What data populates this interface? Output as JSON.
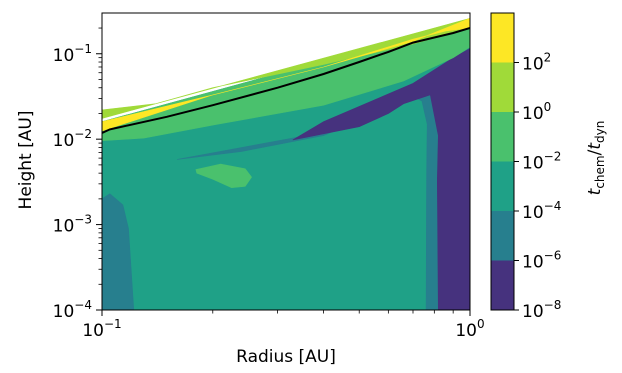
{
  "chart_data": {
    "type": "contourf",
    "xlabel": "Radius [AU]",
    "ylabel": "Height [AU]",
    "xscale": "log",
    "yscale": "log",
    "xlim": [
      0.1,
      1.0
    ],
    "ylim": [
      0.0001,
      0.3
    ],
    "x_ticks": [
      {
        "base": "10",
        "exp": "−1",
        "value": 0.1
      },
      {
        "base": "10",
        "exp": "0",
        "value": 1.0
      }
    ],
    "y_ticks": [
      {
        "base": "10",
        "exp": "−4",
        "value": 0.0001
      },
      {
        "base": "10",
        "exp": "−3",
        "value": 0.001
      },
      {
        "base": "10",
        "exp": "−2",
        "value": 0.01
      },
      {
        "base": "10",
        "exp": "−1",
        "value": 0.1
      }
    ],
    "colorbar": {
      "label_base": "t",
      "label_num_sub": "chem",
      "label_sep": "/",
      "label_den_sub": "dyn",
      "levels": [
        {
          "base": "10",
          "exp": "−8",
          "value": 1e-08
        },
        {
          "base": "10",
          "exp": "−6",
          "value": 1e-06
        },
        {
          "base": "10",
          "exp": "−4",
          "value": 0.0001
        },
        {
          "base": "10",
          "exp": "−2",
          "value": 0.01
        },
        {
          "base": "10",
          "exp": "0",
          "value": 1
        },
        {
          "base": "10",
          "exp": "2",
          "value": 100
        }
      ],
      "colors": [
        "#46327e",
        "#277f8e",
        "#1fa187",
        "#4ac16d",
        "#a0da39",
        "#fde725"
      ]
    },
    "regions": [
      {
        "level_index": 2,
        "color": "#1fa187",
        "polygon": [
          [
            0.1,
            0.0001
          ],
          [
            1.0,
            0.0001
          ],
          [
            1.0,
            0.24
          ],
          [
            0.1,
            0.016
          ]
        ]
      },
      {
        "level_index": 1,
        "color": "#277f8e",
        "polygon": [
          [
            0.1,
            0.0001
          ],
          [
            0.122,
            0.0001
          ],
          [
            0.118,
            0.0009
          ],
          [
            0.114,
            0.0017
          ],
          [
            0.105,
            0.0023
          ],
          [
            0.1,
            0.002
          ]
        ]
      },
      {
        "level_index": 1,
        "color": "#277f8e",
        "polygon": [
          [
            0.76,
            0.0001
          ],
          [
            1.0,
            0.0001
          ],
          [
            1.0,
            0.14
          ],
          [
            0.9,
            0.08
          ],
          [
            0.4,
            0.012
          ],
          [
            0.16,
            0.0058
          ],
          [
            0.24,
            0.0072
          ],
          [
            0.4,
            0.011
          ],
          [
            0.55,
            0.02
          ],
          [
            0.66,
            0.036
          ],
          [
            0.74,
            0.028
          ],
          [
            0.765,
            0.015
          ],
          [
            0.762,
            0.004
          ]
        ]
      },
      {
        "level_index": 0,
        "color": "#46327e",
        "polygon": [
          [
            0.82,
            0.0001
          ],
          [
            1.0,
            0.0001
          ],
          [
            1.0,
            0.115
          ],
          [
            0.9,
            0.09
          ],
          [
            0.7,
            0.045
          ],
          [
            0.4,
            0.016
          ],
          [
            0.33,
            0.0098
          ],
          [
            0.5,
            0.014
          ],
          [
            0.6,
            0.02
          ],
          [
            0.66,
            0.026
          ],
          [
            0.78,
            0.033
          ],
          [
            0.82,
            0.011
          ],
          [
            0.815,
            0.0033
          ]
        ]
      },
      {
        "level_index": 3,
        "color": "#4ac16d",
        "polygon": [
          [
            0.18,
            0.0044
          ],
          [
            0.21,
            0.0051
          ],
          [
            0.245,
            0.0045
          ],
          [
            0.255,
            0.0036
          ],
          [
            0.245,
            0.0028
          ],
          [
            0.225,
            0.0027
          ],
          [
            0.2,
            0.0034
          ],
          [
            0.181,
            0.004
          ]
        ]
      },
      {
        "level_index": 3,
        "color": "#4ac16d",
        "polygon": [
          [
            0.1,
            0.016
          ],
          [
            1.0,
            0.24
          ],
          [
            1.0,
            0.12
          ],
          [
            0.9,
            0.09
          ],
          [
            0.66,
            0.048
          ],
          [
            0.4,
            0.025
          ],
          [
            0.2,
            0.0146
          ],
          [
            0.13,
            0.0103
          ],
          [
            0.1,
            0.0096
          ]
        ]
      },
      {
        "level_index": 4,
        "color": "#a0da39",
        "polygon": [
          [
            0.1,
            0.0175
          ],
          [
            1.0,
            0.26
          ],
          [
            1.0,
            0.2
          ],
          [
            0.7,
            0.13
          ],
          [
            0.4,
            0.075
          ],
          [
            0.2,
            0.04
          ],
          [
            0.14,
            0.026
          ],
          [
            0.1,
            0.022
          ]
        ]
      },
      {
        "level_index": 5,
        "color": "#fde725",
        "polygon": [
          [
            0.1,
            0.016
          ],
          [
            0.2,
            0.033
          ],
          [
            0.4,
            0.07
          ],
          [
            0.7,
            0.14
          ],
          [
            1.0,
            0.26
          ],
          [
            1.0,
            0.2
          ],
          [
            0.86,
            0.185
          ],
          [
            0.7,
            0.148
          ],
          [
            0.4,
            0.07
          ],
          [
            0.2,
            0.033
          ],
          [
            0.1,
            0.0125
          ]
        ]
      }
    ],
    "boundary_line": {
      "color": "#000000",
      "points": [
        [
          0.1,
          0.0118
        ],
        [
          0.105,
          0.013
        ],
        [
          0.15,
          0.0183
        ],
        [
          0.2,
          0.025
        ],
        [
          0.3,
          0.04
        ],
        [
          0.4,
          0.058
        ],
        [
          0.5,
          0.08
        ],
        [
          0.6,
          0.105
        ],
        [
          0.7,
          0.135
        ],
        [
          0.8,
          0.155
        ],
        [
          0.9,
          0.175
        ],
        [
          1.0,
          0.2
        ]
      ]
    }
  }
}
